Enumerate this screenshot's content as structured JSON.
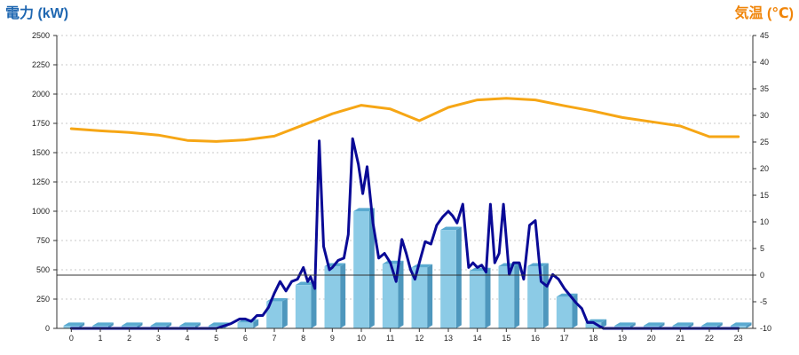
{
  "chart_data": {
    "type": "bar+line",
    "y_left_label": "電力 (kW)",
    "y_right_label": "気温 (℃)",
    "y_left_range": [
      0,
      2500
    ],
    "y_left_ticks": [
      "0",
      "250",
      "500",
      "750",
      "1000",
      "1250",
      "1500",
      "1750",
      "2000",
      "2250",
      "2500"
    ],
    "y_right_range": [
      -10,
      45
    ],
    "y_right_ticks": [
      "-10",
      "-5",
      "0",
      "5",
      "10",
      "15",
      "20",
      "25",
      "30",
      "35",
      "40",
      "45"
    ],
    "x_categories": [
      "0",
      "1",
      "2",
      "3",
      "4",
      "5",
      "6",
      "7",
      "8",
      "9",
      "10",
      "11",
      "12",
      "13",
      "14",
      "15",
      "16",
      "17",
      "18",
      "19",
      "20",
      "21",
      "22",
      "23"
    ],
    "grid": "horizontal dashed",
    "series": [
      {
        "kind": "bar",
        "unit": "kW",
        "color": "#8ccbe6",
        "values": [
          0,
          0,
          0,
          0,
          0,
          0,
          50,
          230,
          370,
          530,
          1000,
          550,
          520,
          840,
          490,
          530,
          530,
          270,
          50,
          0,
          0,
          0,
          0,
          0
        ]
      },
      {
        "kind": "line",
        "axis": "left",
        "unit": "kW",
        "color": "#0a0a96",
        "x": [
          0,
          1,
          2,
          3,
          4,
          5,
          5.5,
          5.8,
          6,
          6.2,
          6.4,
          6.6,
          6.8,
          7,
          7.2,
          7.4,
          7.6,
          7.8,
          8,
          8.15,
          8.25,
          8.4,
          8.55,
          8.7,
          8.9,
          9,
          9.2,
          9.4,
          9.55,
          9.7,
          9.9,
          10.05,
          10.2,
          10.4,
          10.6,
          10.8,
          11,
          11.2,
          11.4,
          11.55,
          11.7,
          11.85,
          12,
          12.2,
          12.4,
          12.6,
          12.8,
          13,
          13.15,
          13.3,
          13.5,
          13.7,
          13.85,
          14,
          14.15,
          14.3,
          14.45,
          14.6,
          14.75,
          14.9,
          15.1,
          15.25,
          15.45,
          15.6,
          15.8,
          16,
          16.2,
          16.4,
          16.6,
          16.8,
          17,
          17.2,
          17.4,
          17.6,
          17.8,
          18,
          18.2,
          18.35,
          18.5,
          19,
          20,
          21,
          22,
          23
        ],
        "values": [
          0,
          0,
          0,
          0,
          0,
          0,
          40,
          80,
          80,
          60,
          110,
          110,
          180,
          300,
          400,
          320,
          400,
          420,
          520,
          400,
          440,
          340,
          1600,
          700,
          500,
          520,
          580,
          600,
          800,
          1620,
          1400,
          1150,
          1380,
          900,
          600,
          640,
          560,
          400,
          760,
          640,
          500,
          420,
          560,
          740,
          720,
          880,
          950,
          1000,
          960,
          900,
          1060,
          520,
          560,
          520,
          540,
          480,
          1060,
          560,
          640,
          1060,
          460,
          560,
          560,
          420,
          880,
          920,
          400,
          360,
          460,
          420,
          340,
          280,
          220,
          170,
          50,
          50,
          20,
          0,
          0,
          0,
          0,
          0,
          0,
          0
        ]
      },
      {
        "kind": "line",
        "axis": "right",
        "unit": "℃",
        "color": "#f6a615",
        "x": [
          0,
          1,
          2,
          3,
          4,
          5,
          6,
          7,
          8,
          9,
          10,
          11,
          12,
          13,
          14,
          15,
          16,
          17,
          18,
          19,
          20,
          21,
          22,
          23
        ],
        "values": [
          27.5,
          27.1,
          26.8,
          26.3,
          25.3,
          25.1,
          25.4,
          26.1,
          28.2,
          30.3,
          31.9,
          31.2,
          29.0,
          31.5,
          32.9,
          33.2,
          32.9,
          31.8,
          30.8,
          29.6,
          28.8,
          28.0,
          26.0,
          26.0
        ]
      }
    ]
  }
}
